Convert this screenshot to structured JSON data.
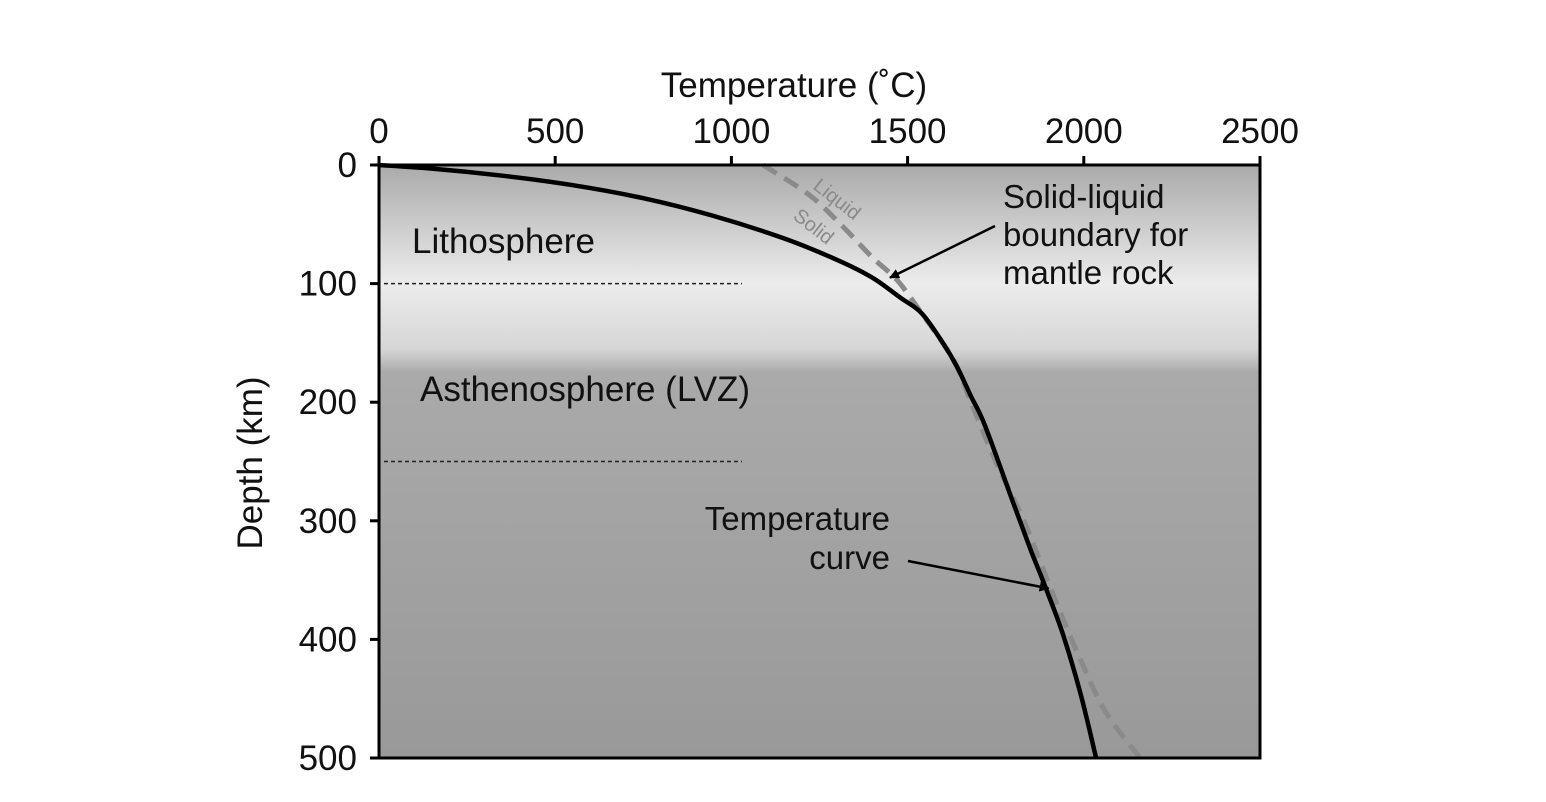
{
  "chart_data": {
    "type": "line",
    "title": "",
    "xlabel": "Temperature (˚C)",
    "ylabel": "Depth (km)",
    "xlim": [
      0,
      2500
    ],
    "ylim": [
      0,
      500
    ],
    "x_axis_position": "top",
    "y_axis_inverted": true,
    "grid": false,
    "x_ticks": [
      0,
      500,
      1000,
      1500,
      2000,
      2500
    ],
    "y_ticks": [
      0,
      100,
      200,
      300,
      400,
      500
    ],
    "series": [
      {
        "id": "temperature",
        "style": "solid",
        "color": "#000000",
        "points": [
          [
            0,
            0
          ],
          [
            150,
            3
          ],
          [
            350,
            9
          ],
          [
            550,
            17
          ],
          [
            750,
            28
          ],
          [
            950,
            43
          ],
          [
            1150,
            62
          ],
          [
            1300,
            80
          ],
          [
            1400,
            95
          ],
          [
            1480,
            112
          ],
          [
            1540,
            125
          ],
          [
            1600,
            150
          ],
          [
            1640,
            170
          ],
          [
            1680,
            195
          ],
          [
            1720,
            220
          ],
          [
            1800,
            285
          ],
          [
            1850,
            325
          ],
          [
            1890,
            355
          ],
          [
            1940,
            395
          ],
          [
            1990,
            445
          ],
          [
            2035,
            500
          ]
        ]
      },
      {
        "id": "solid-liquid-boundary",
        "style": "dashed",
        "color": "#8a8a8a",
        "points": [
          [
            1090,
            0
          ],
          [
            1220,
            25
          ],
          [
            1310,
            50
          ],
          [
            1400,
            78
          ],
          [
            1470,
            97
          ],
          [
            1540,
            125
          ],
          [
            1600,
            150
          ],
          [
            1640,
            170
          ],
          [
            1680,
            200
          ],
          [
            1750,
            250
          ],
          [
            1830,
            300
          ],
          [
            1910,
            360
          ],
          [
            1980,
            410
          ],
          [
            2060,
            460
          ],
          [
            2160,
            500
          ]
        ]
      }
    ],
    "curve_labels": {
      "liquid": "Liquid",
      "solid": "Solid"
    },
    "regions": [
      {
        "name": "Lithosphere",
        "boundary_depth": 100
      },
      {
        "name": "Asthenosphere (LVZ)",
        "boundary_depth": 250
      }
    ],
    "annotations": [
      {
        "lines": [
          "Solid-liquid",
          "boundary for",
          "mantle rock"
        ],
        "target": [
          1450,
          95
        ]
      },
      {
        "lines": [
          "Temperature",
          "curve"
        ],
        "target": [
          1900,
          357
        ]
      }
    ],
    "background": {
      "gradient": [
        "#aaaaaa",
        "#ececec",
        "#aaaaaa",
        "#999999"
      ]
    }
  }
}
